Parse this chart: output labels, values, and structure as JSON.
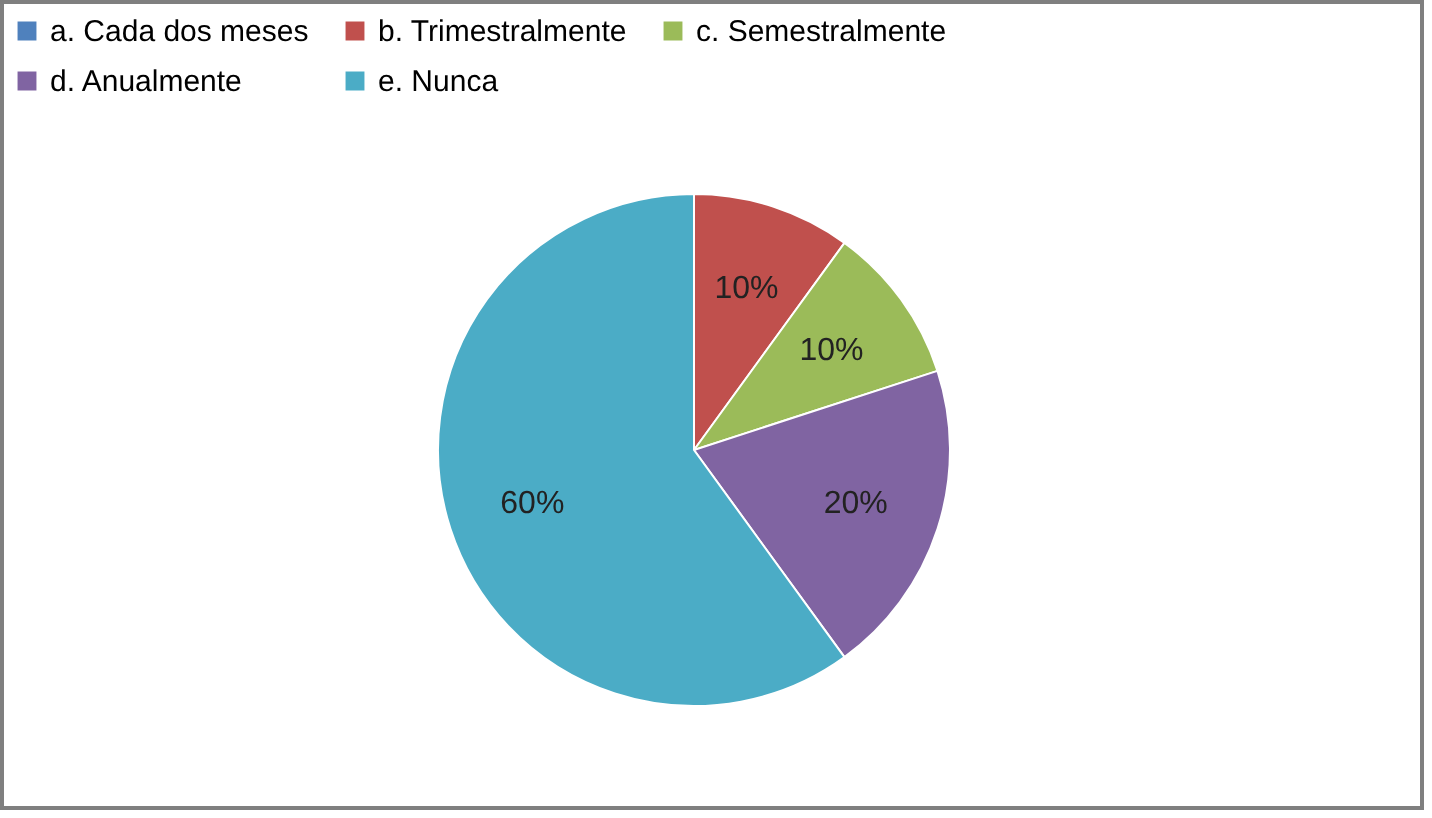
{
  "chart_data": {
    "type": "pie",
    "categories": [
      "a. Cada dos meses",
      "b. Trimestralmente",
      "c.  Semestralmente",
      "d.  Anualmente",
      "e.    Nunca"
    ],
    "values": [
      0,
      10,
      10,
      20,
      60
    ],
    "colors": [
      "#4f81bd",
      "#c0504d",
      "#9bbb59",
      "#8064a2",
      "#4bacc6"
    ],
    "value_labels": [
      null,
      "10%",
      "10%",
      "20%",
      "60%"
    ],
    "legend": "top"
  }
}
